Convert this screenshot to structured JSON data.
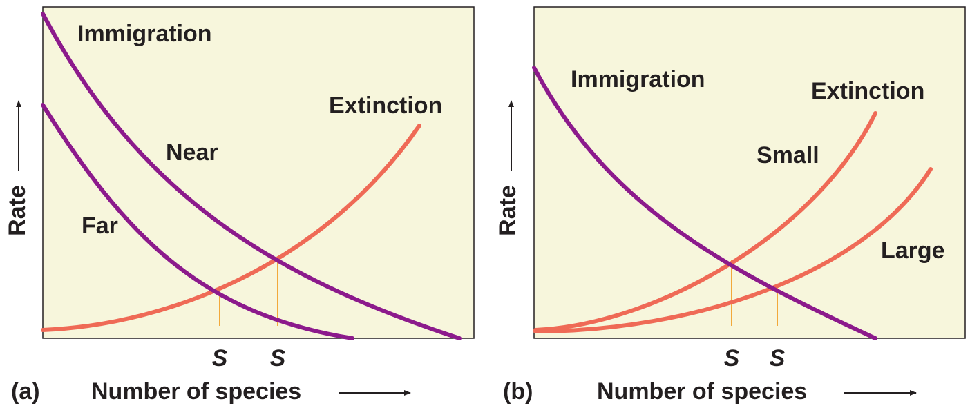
{
  "colors": {
    "background": "#f7f6dc",
    "immigration": "#8c1a8c",
    "extinction": "#ef6a56",
    "equilibrium_line": "#f2a93b",
    "text": "#231f20"
  },
  "panel_a": {
    "letter": "(a)",
    "xlabel": "Number of species",
    "ylabel": "Rate",
    "labels": {
      "immigration": "Immigration",
      "extinction": "Extinction",
      "near": "Near",
      "far": "Far"
    },
    "equilibria": [
      "S",
      "S"
    ]
  },
  "panel_b": {
    "letter": "(b)",
    "xlabel": "Number of species",
    "ylabel": "Rate",
    "labels": {
      "immigration": "Immigration",
      "extinction": "Extinction",
      "small": "Small",
      "large": "Large"
    },
    "equilibria": [
      "S",
      "S"
    ]
  }
}
